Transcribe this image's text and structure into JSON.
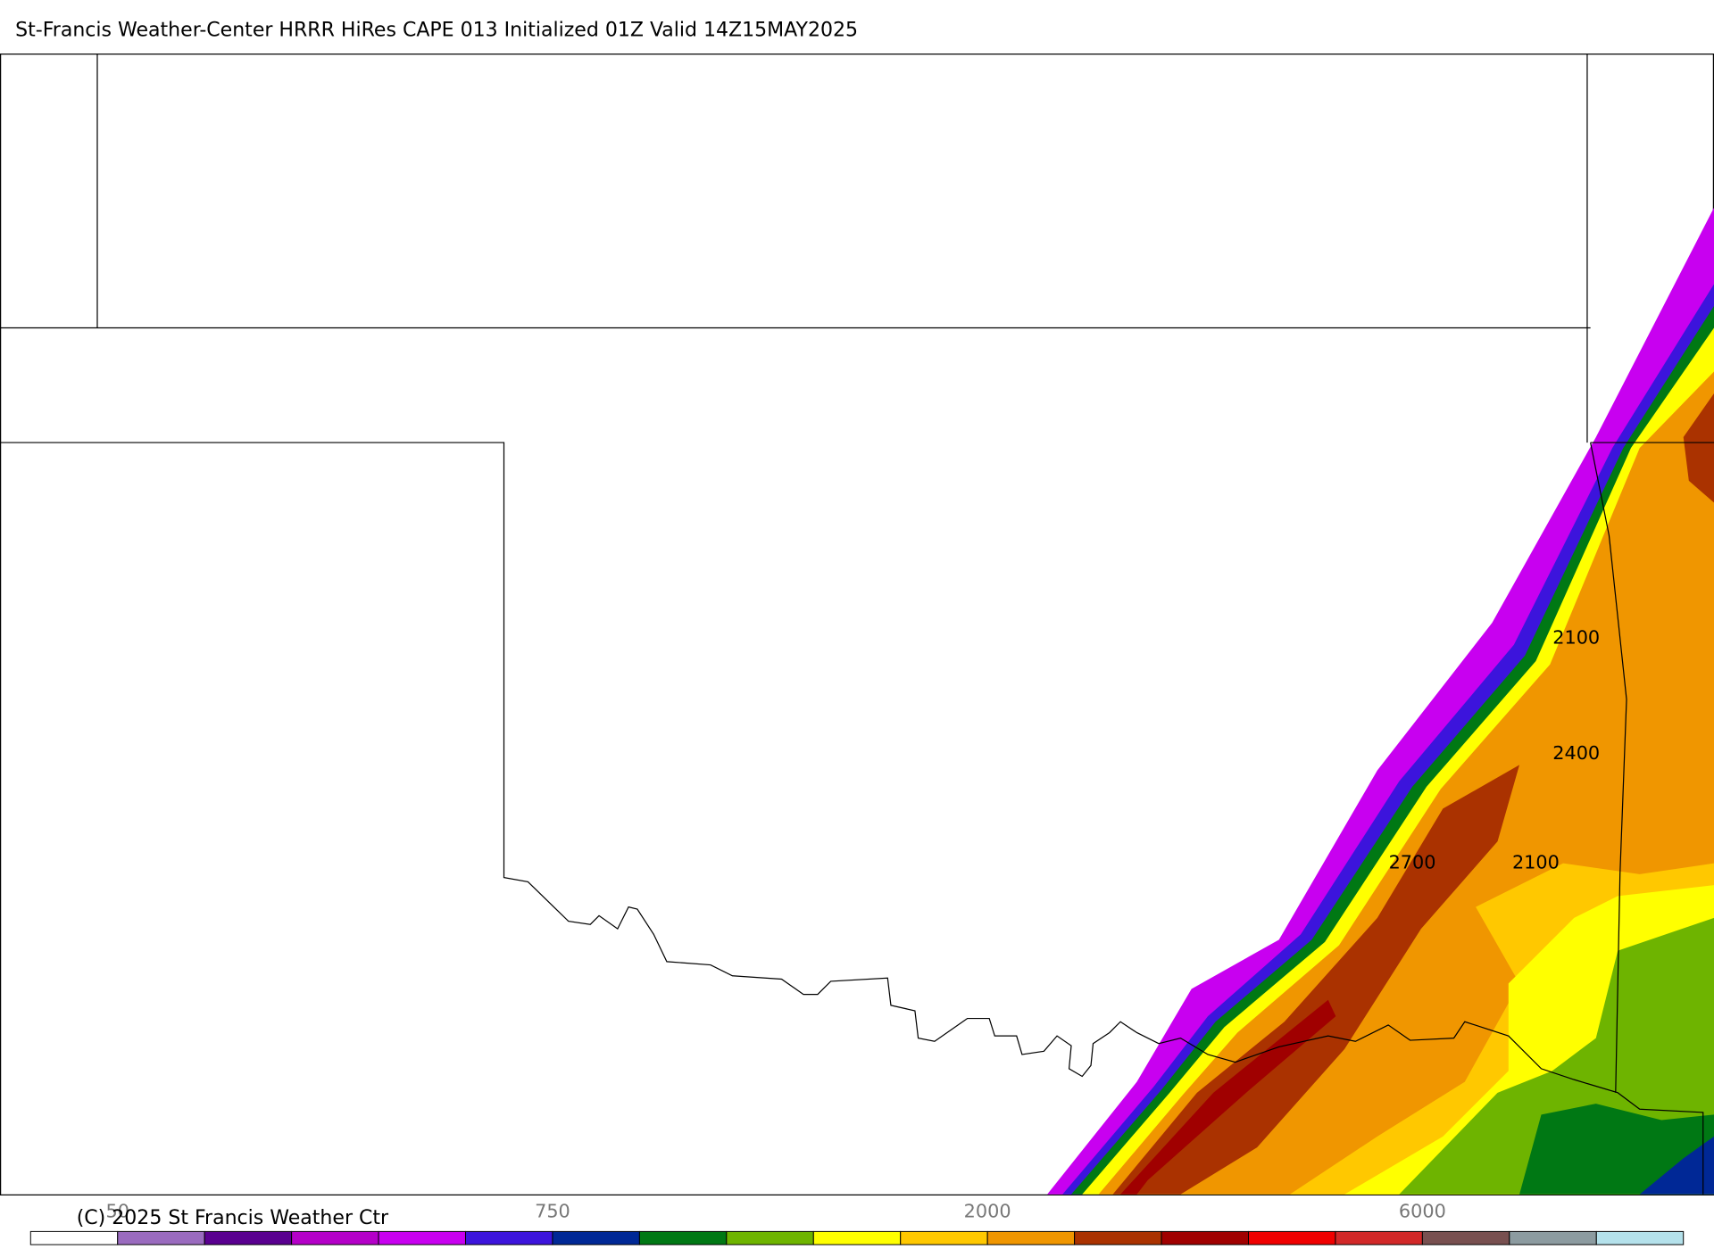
{
  "header": {
    "title": "St-Francis Weather-Center HRRR HiRes CAPE  013 Initialized  01Z Valid 14Z15MAY2025"
  },
  "map": {
    "contour_labels": [
      "2100",
      "2400",
      "2700",
      "2100"
    ]
  },
  "colorbar": {
    "colors": [
      "#ffffff",
      "#9a6bbf",
      "#5a0090",
      "#b400c8",
      "#c800f0",
      "#3c14dc",
      "#002896",
      "#007814",
      "#6eb400",
      "#ffff00",
      "#ffc800",
      "#f09600",
      "#aa3200",
      "#a00000",
      "#f00000",
      "#d22828",
      "#785050",
      "#8c9ba0",
      "#b4e1eb"
    ],
    "labels": [
      "50",
      "750",
      "2000",
      "6000"
    ]
  },
  "footer": {
    "copyright": "(C) 2025 St Francis Weather Ctr"
  }
}
